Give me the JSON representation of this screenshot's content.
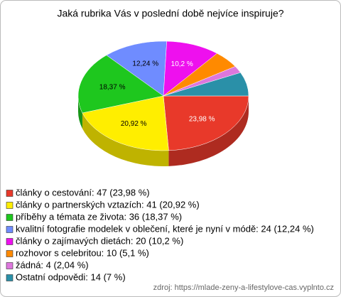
{
  "chart_data": {
    "type": "pie3d",
    "title": "Jaká rubrika Vás v poslední době nejvíce inspiruje?",
    "categories": [
      "články o cestování: 47 (23,98 %)",
      "články o partnerských vztazích: 41 (20,92 %)",
      "příběhy a témata ze života: 36 (18,37 %)",
      "kvalitní fotografie modelek v oblečení, které je nyní v módě: 24 (12,24 %)",
      "články o zajímavých dietách: 20 (10,2 %)",
      "rozhovor s celebritou: 10 (5,1 %)",
      "žádná: 4 (2,04 %)",
      "Ostatní odpovědi: 14 (7 %)"
    ],
    "values": [
      23.98,
      20.92,
      18.37,
      12.24,
      10.2,
      5.1,
      2.04,
      7
    ],
    "value_labels": [
      "23,98 %",
      "20,92 %",
      "18,37 %",
      "12,24 %",
      "10,2 %",
      null,
      null,
      null
    ],
    "colors": [
      "#e8392a",
      "#ffee00",
      "#1ec71e",
      "#6f8cff",
      "#ee10ee",
      "#ff8a00",
      "#dd77dd",
      "#2a90a8"
    ],
    "source": "zdroj: https://mlade-zeny-a-lifestylove-cas.vyplnto.cz"
  }
}
